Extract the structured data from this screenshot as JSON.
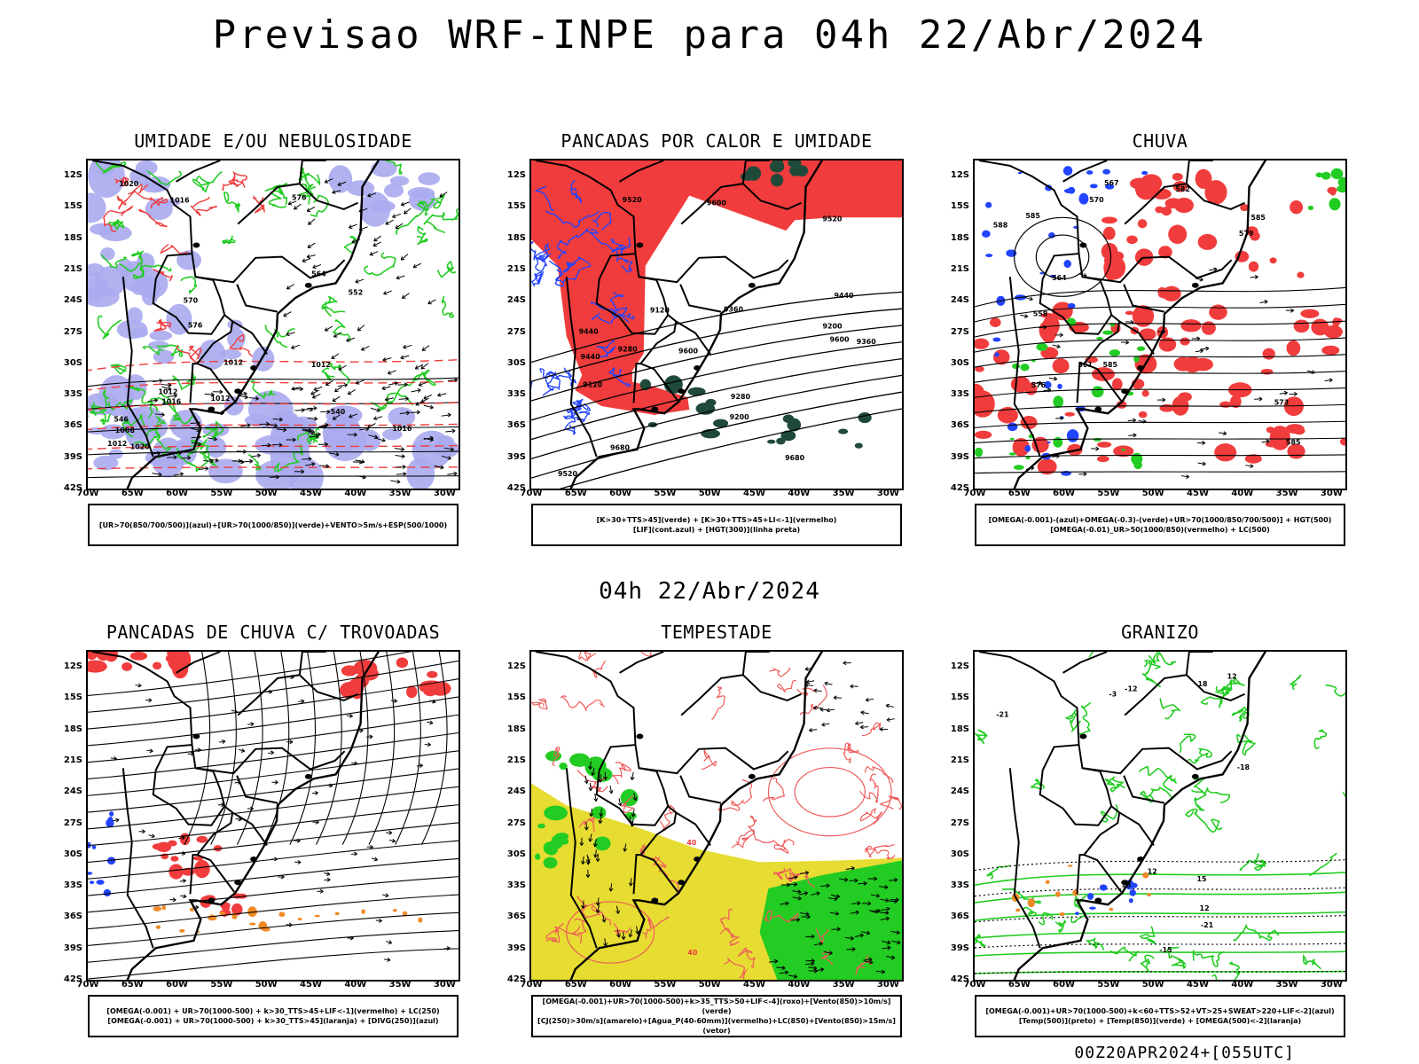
{
  "main_title": "Previsao WRF-INPE  para 04h 22/Abr/2024",
  "mid_title": "04h 22/Abr/2024",
  "footer": "00Z20APR2024+[055UTC]",
  "lat_labels": [
    "12S",
    "15S",
    "18S",
    "21S",
    "24S",
    "27S",
    "30S",
    "33S",
    "36S",
    "39S",
    "42S"
  ],
  "lon_labels": [
    "70W",
    "65W",
    "60W",
    "55W",
    "50W",
    "45W",
    "40W",
    "35W",
    "30W"
  ],
  "colors": {
    "red": "#f03c3c",
    "green": "#22cc22",
    "blue": "#2244ff",
    "lavender": "#aaaaf0",
    "yellow": "#e6dc32",
    "darkgreen": "#1f4a3a",
    "orange": "#f08a28",
    "salmon": "#f05a5a"
  },
  "panels": [
    {
      "title": "UMIDADE E/OU NEBULOSIDADE",
      "legend": [
        "[UR>70(850/700/500)](azul)+[UR>70(1000/850)](verde)+VENTO>5m/s+ESP(500/1000)"
      ],
      "labels": [
        "1012",
        "1012",
        "1016",
        "1020",
        "1016",
        "1008",
        "1012",
        "1016",
        "1012",
        "570",
        "576",
        "576",
        "564",
        "552",
        "546",
        "540",
        "1020",
        "1012"
      ]
    },
    {
      "title": "PANCADAS POR CALOR E UMIDADE",
      "legend": [
        "[K>30+TTS>45](verde)  +  [K>30+TTS>45+LI<-1](vermelho)",
        "[LIF](cont.azul)  +  [HGT(300)](linha preta)"
      ],
      "labels": [
        "9680",
        "9680",
        "9600",
        "9520",
        "9600",
        "9440",
        "9520",
        "9440",
        "9360",
        "9280",
        "9200",
        "9120",
        "9600",
        "9520",
        "9440",
        "9360",
        "9280",
        "9200",
        "9120"
      ]
    },
    {
      "title": "CHUVA",
      "legend": [
        "[OMEGA(-0.001)-(azul)+OMEGA(-0.3)-(verde)+UR>70(1000/850/700/500)]  +  HGT(500)",
        "[OMEGA(-0.01)_UR>50(1000/850)(vermelho)  +  LC(500)"
      ],
      "labels": [
        "585",
        "585",
        "585",
        "582",
        "579",
        "576",
        "573",
        "570",
        "567",
        "564",
        "561",
        "558",
        "585",
        "588"
      ]
    },
    {
      "title": "PANCADAS DE CHUVA C/ TROVOADAS",
      "legend": [
        "[OMEGA(-0.001)  +  UR>70(1000-500)  +  k>30_TTS>45+LIF<-1](vermelho)  +  LC(250)",
        "[OMEGA(-0.001)  +  UR>70(1000-500)  +  k>30_TTS>45](laranja)  +  [DIVG(250)](azul)"
      ],
      "labels": []
    },
    {
      "title": "TEMPESTADE",
      "legend": [
        "[OMEGA(-0.001)+UR>70(1000-500)+k>35_TTS>50+LIF<-4](roxo)+[Vento(850)>10m/s](verde)",
        "[CJ(250)>30m/s](amarelo)+[Agua_P(40-60mm)](vermelho)+LC(850)+[Vento(850)>15m/s](vetor)"
      ],
      "labels": [
        "40",
        "40"
      ]
    },
    {
      "title": "GRANIZO",
      "legend": [
        "[OMEGA(-0.001)+UR>70(1000-500)+k<60+TTS>52+VT>25+SWEAT>220+LIF<-2](azul)",
        "[Temp(500)](preto)  +  [Temp(850)](verde)  +  [OMEGA(500)<-2](laranja)"
      ],
      "labels": [
        "-3",
        "12",
        "12",
        "-12",
        "-15",
        "-18",
        "-21",
        "-18",
        "-21",
        "12",
        "18",
        "15"
      ]
    }
  ]
}
